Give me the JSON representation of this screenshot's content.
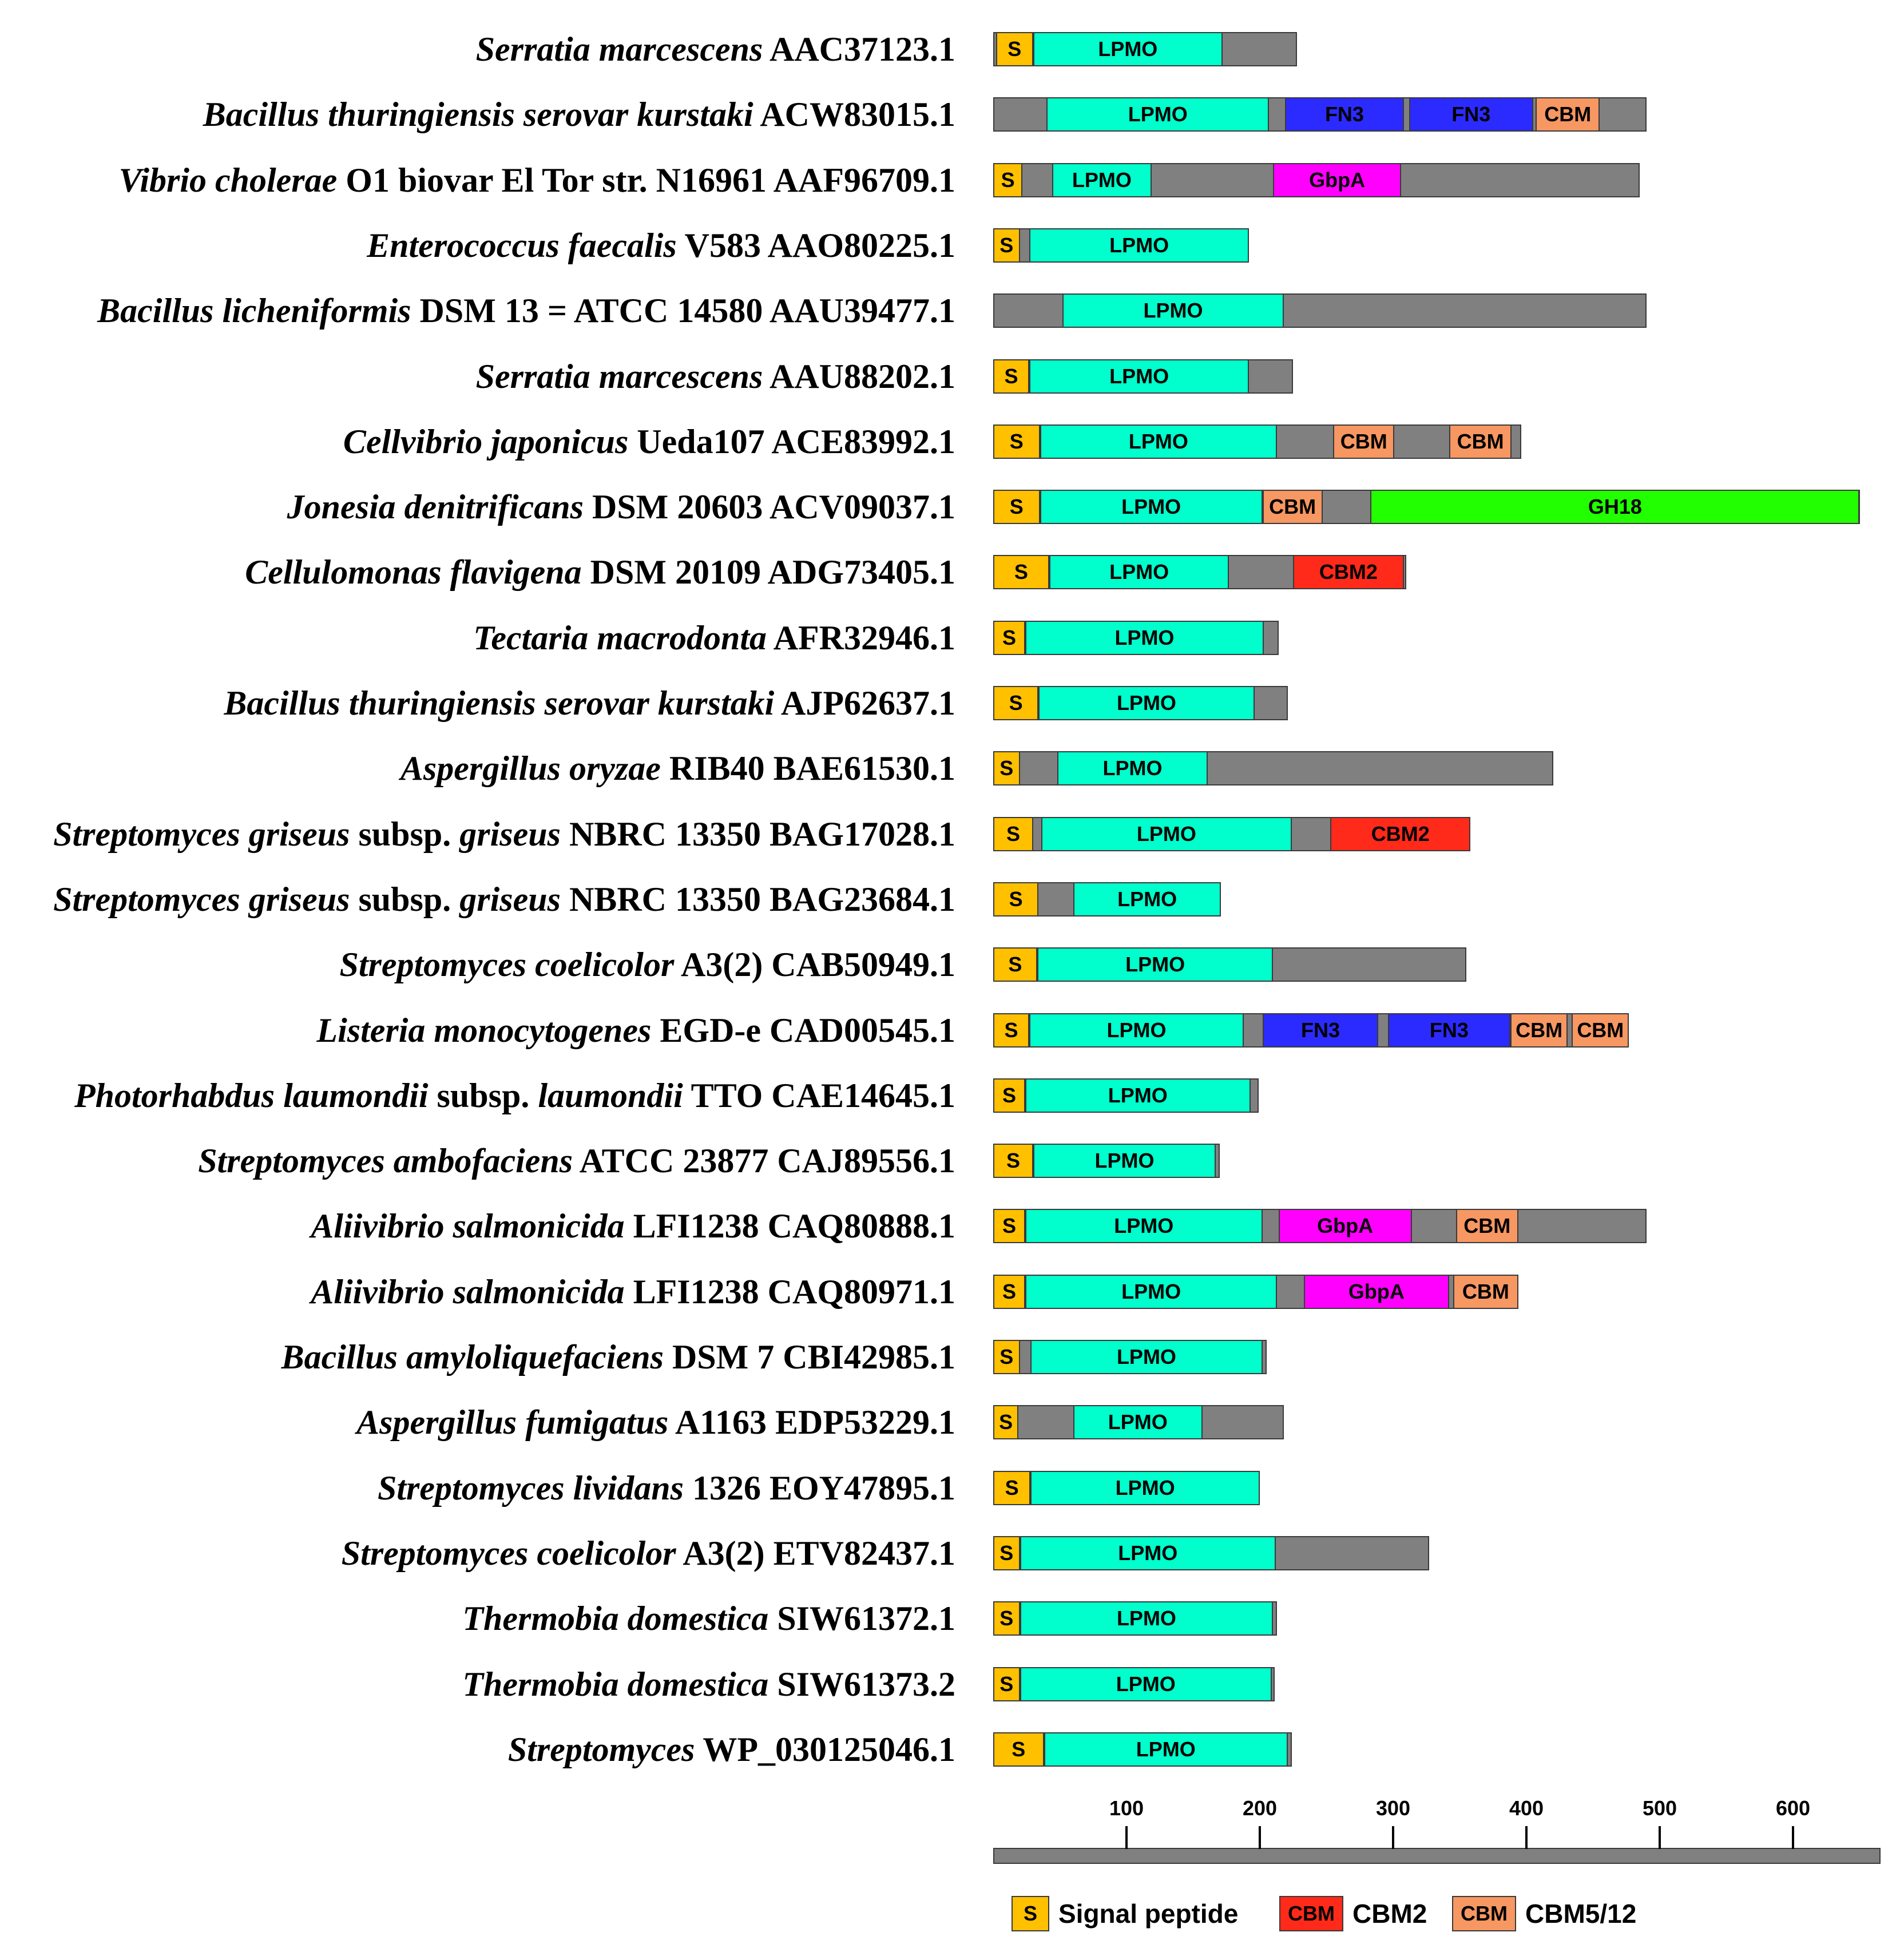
{
  "colors": {
    "S": "#FFC000",
    "LPMO": "#00FFCC",
    "FN3": "#2B2BFF",
    "CBM": "#F79762",
    "CBM2": "#FF2A1A",
    "GbpA": "#FF00FF",
    "GH18": "#22FF00",
    "backbone": "#808080"
  },
  "chart_data": {
    "type": "domain-architecture",
    "x_axis": {
      "min": 0,
      "max": 660,
      "ticks": [
        100,
        200,
        300,
        400,
        500,
        600
      ]
    },
    "proteins": [
      {
        "species": "Serratia marcescens",
        "rest": " AAC37123.1",
        "length": 228,
        "domains": [
          {
            "type": "S",
            "label": "S",
            "start": 2,
            "end": 30
          },
          {
            "type": "LPMO",
            "label": "LPMO",
            "start": 30,
            "end": 172
          }
        ]
      },
      {
        "species": "Bacillus thuringiensis serovar kurstaki",
        "rest": " ACW83015.1",
        "length": 490,
        "domains": [
          {
            "type": "LPMO",
            "label": "LPMO",
            "start": 40,
            "end": 207
          },
          {
            "type": "FN3",
            "label": "FN3",
            "start": 219,
            "end": 308
          },
          {
            "type": "FN3",
            "label": "FN3",
            "start": 312,
            "end": 405
          },
          {
            "type": "CBM",
            "label": "CBM",
            "start": 407,
            "end": 455
          }
        ]
      },
      {
        "species": "Vibrio cholerae",
        "rest": " O1 biovar El Tor str. N16961 AAF96709.1",
        "length": 485,
        "domains": [
          {
            "type": "S",
            "label": "S",
            "start": 0,
            "end": 22
          },
          {
            "type": "LPMO",
            "label": "LPMO",
            "start": 44,
            "end": 119
          },
          {
            "type": "GbpA",
            "label": "GbpA",
            "start": 210,
            "end": 306
          }
        ]
      },
      {
        "species": "Enterococcus faecalis",
        "rest": " V583 AAO80225.1",
        "length": 192,
        "domains": [
          {
            "type": "S",
            "label": "S",
            "start": 0,
            "end": 20
          },
          {
            "type": "LPMO",
            "label": "LPMO",
            "start": 27,
            "end": 192
          }
        ]
      },
      {
        "species": "Bacillus licheniformis",
        "rest": " DSM 13 = ATCC 14580 AAU39477.1",
        "length": 490,
        "domains": [
          {
            "type": "LPMO",
            "label": "LPMO",
            "start": 52,
            "end": 218
          }
        ]
      },
      {
        "species": "Serratia marcescens",
        "rest": " AAU88202.1",
        "length": 225,
        "domains": [
          {
            "type": "S",
            "label": "S",
            "start": 0,
            "end": 27
          },
          {
            "type": "LPMO",
            "label": "LPMO",
            "start": 27,
            "end": 192
          }
        ]
      },
      {
        "species": "Cellvibrio japonicus",
        "rest": " Ueda107 ACE83992.1",
        "length": 396,
        "domains": [
          {
            "type": "S",
            "label": "S",
            "start": 0,
            "end": 35
          },
          {
            "type": "LPMO",
            "label": "LPMO",
            "start": 35,
            "end": 213
          },
          {
            "type": "CBM",
            "label": "CBM",
            "start": 255,
            "end": 301
          },
          {
            "type": "CBM",
            "label": "CBM",
            "start": 342,
            "end": 389
          }
        ]
      },
      {
        "species": "Jonesia denitrificans",
        "rest": " DSM 20603 ACV09037.1",
        "length": 650,
        "domains": [
          {
            "type": "S",
            "label": "S",
            "start": 0,
            "end": 35
          },
          {
            "type": "LPMO",
            "label": "LPMO",
            "start": 35,
            "end": 202
          },
          {
            "type": "CBM",
            "label": "CBM",
            "start": 202,
            "end": 247
          },
          {
            "type": "GH18",
            "label": "GH18",
            "start": 283,
            "end": 650
          }
        ]
      },
      {
        "species": "Cellulomonas flavigena",
        "rest": " DSM 20109 ADG73405.1",
        "length": 310,
        "domains": [
          {
            "type": "S",
            "label": "S",
            "start": 0,
            "end": 42
          },
          {
            "type": "LPMO",
            "label": "LPMO",
            "start": 42,
            "end": 177
          },
          {
            "type": "CBM2",
            "label": "CBM2",
            "start": 225,
            "end": 308
          }
        ]
      },
      {
        "species": "Tectaria macrodonta",
        "rest": " AFR32946.1",
        "length": 214,
        "domains": [
          {
            "type": "S",
            "label": "S",
            "start": 0,
            "end": 24
          },
          {
            "type": "LPMO",
            "label": "LPMO",
            "start": 24,
            "end": 203
          }
        ]
      },
      {
        "species": "Bacillus thuringiensis serovar kurstaki",
        "rest": " AJP62637.1",
        "length": 221,
        "domains": [
          {
            "type": "S",
            "label": "S",
            "start": 0,
            "end": 34
          },
          {
            "type": "LPMO",
            "label": "LPMO",
            "start": 34,
            "end": 196
          }
        ]
      },
      {
        "species": "Aspergillus oryzae",
        "rest": " RIB40 BAE61530.1",
        "length": 420,
        "domains": [
          {
            "type": "S",
            "label": "S",
            "start": 0,
            "end": 20
          },
          {
            "type": "LPMO",
            "label": "LPMO",
            "start": 48,
            "end": 161
          }
        ]
      },
      {
        "species": "Streptomyces griseus",
        "rest": " subsp. ",
        "species2": "griseus",
        "rest2": " NBRC 13350 BAG17028.1",
        "length": 358,
        "domains": [
          {
            "type": "S",
            "label": "S",
            "start": 0,
            "end": 30
          },
          {
            "type": "LPMO",
            "label": "LPMO",
            "start": 36,
            "end": 224
          },
          {
            "type": "CBM2",
            "label": "CBM2",
            "start": 253,
            "end": 358
          }
        ]
      },
      {
        "species": "Streptomyces griseus",
        "rest": " subsp. ",
        "species2": "griseus",
        "rest2": " NBRC 13350 BAG23684.1",
        "length": 171,
        "domains": [
          {
            "type": "S",
            "label": "S",
            "start": 0,
            "end": 34
          },
          {
            "type": "LPMO",
            "label": "LPMO",
            "start": 60,
            "end": 171
          }
        ]
      },
      {
        "species": "Streptomyces coelicolor",
        "rest": " A3(2) CAB50949.1",
        "length": 355,
        "domains": [
          {
            "type": "S",
            "label": "S",
            "start": 0,
            "end": 33
          },
          {
            "type": "LPMO",
            "label": "LPMO",
            "start": 33,
            "end": 210
          }
        ]
      },
      {
        "species": "Listeria monocytogenes",
        "rest": " EGD-e CAD00545.1",
        "length": 477,
        "domains": [
          {
            "type": "S",
            "label": "S",
            "start": 0,
            "end": 27
          },
          {
            "type": "LPMO",
            "label": "LPMO",
            "start": 27,
            "end": 188
          },
          {
            "type": "FN3",
            "label": "FN3",
            "start": 202,
            "end": 289
          },
          {
            "type": "FN3",
            "label": "FN3",
            "start": 296,
            "end": 388
          },
          {
            "type": "CBM",
            "label": "CBM",
            "start": 388,
            "end": 431
          },
          {
            "type": "CBM",
            "label": "CBM",
            "start": 434,
            "end": 477
          }
        ]
      },
      {
        "species": "Photorhabdus laumondii",
        "rest": " subsp. ",
        "species2": "laumondii",
        "rest2": " TTO CAE14645.1",
        "length": 199,
        "domains": [
          {
            "type": "S",
            "label": "S",
            "start": 0,
            "end": 24
          },
          {
            "type": "LPMO",
            "label": "LPMO",
            "start": 24,
            "end": 193
          }
        ]
      },
      {
        "species": "Streptomyces ambofaciens",
        "rest": " ATCC 23877 CAJ89556.1",
        "length": 170,
        "domains": [
          {
            "type": "S",
            "label": "S",
            "start": 0,
            "end": 30
          },
          {
            "type": "LPMO",
            "label": "LPMO",
            "start": 30,
            "end": 167
          }
        ]
      },
      {
        "species": "Aliivibrio salmonicida",
        "rest": " LFI1238 CAQ80888.1",
        "length": 490,
        "domains": [
          {
            "type": "S",
            "label": "S",
            "start": 0,
            "end": 24
          },
          {
            "type": "LPMO",
            "label": "LPMO",
            "start": 24,
            "end": 202
          },
          {
            "type": "GbpA",
            "label": "GbpA",
            "start": 214,
            "end": 314
          },
          {
            "type": "CBM",
            "label": "CBM",
            "start": 347,
            "end": 394
          }
        ]
      },
      {
        "species": "Aliivibrio salmonicida",
        "rest": " LFI1238 CAQ80971.1",
        "length": 394,
        "domains": [
          {
            "type": "S",
            "label": "S",
            "start": 0,
            "end": 24
          },
          {
            "type": "LPMO",
            "label": "LPMO",
            "start": 24,
            "end": 213
          },
          {
            "type": "GbpA",
            "label": "GbpA",
            "start": 233,
            "end": 342
          },
          {
            "type": "CBM",
            "label": "CBM",
            "start": 345,
            "end": 394
          }
        ]
      },
      {
        "species": "Bacillus amyloliquefaciens",
        "rest": " DSM 7 CBI42985.1",
        "length": 205,
        "domains": [
          {
            "type": "S",
            "label": "S",
            "start": 0,
            "end": 20
          },
          {
            "type": "LPMO",
            "label": "LPMO",
            "start": 28,
            "end": 202
          }
        ]
      },
      {
        "species": "Aspergillus fumigatus",
        "rest": " A1163 EDP53229.1",
        "length": 218,
        "domains": [
          {
            "type": "S",
            "label": "S",
            "start": 0,
            "end": 19
          },
          {
            "type": "LPMO",
            "label": "LPMO",
            "start": 60,
            "end": 157
          }
        ]
      },
      {
        "species": "Streptomyces lividans",
        "rest": " 1326 EOY47895.1",
        "length": 200,
        "domains": [
          {
            "type": "S",
            "label": "S",
            "start": 0,
            "end": 28
          },
          {
            "type": "LPMO",
            "label": "LPMO",
            "start": 28,
            "end": 200
          }
        ]
      },
      {
        "species": "Streptomyces coelicolor",
        "rest": " A3(2) ETV82437.1",
        "length": 327,
        "domains": [
          {
            "type": "S",
            "label": "S",
            "start": 0,
            "end": 20
          },
          {
            "type": "LPMO",
            "label": "LPMO",
            "start": 20,
            "end": 212
          }
        ]
      },
      {
        "species": "Thermobia domestica",
        "rest": " SIW61372.1",
        "length": 213,
        "domains": [
          {
            "type": "S",
            "label": "S",
            "start": 0,
            "end": 20
          },
          {
            "type": "LPMO",
            "label": "LPMO",
            "start": 20,
            "end": 210
          }
        ]
      },
      {
        "species": "Thermobia domestica",
        "rest": " SIW61373.2",
        "length": 211,
        "domains": [
          {
            "type": "S",
            "label": "S",
            "start": 0,
            "end": 20
          },
          {
            "type": "LPMO",
            "label": "LPMO",
            "start": 20,
            "end": 209
          }
        ]
      },
      {
        "species": "Streptomyces",
        "rest": " WP_030125046.1",
        "length": 224,
        "domains": [
          {
            "type": "S",
            "label": "S",
            "start": 0,
            "end": 38
          },
          {
            "type": "LPMO",
            "label": "LPMO",
            "start": 38,
            "end": 221
          }
        ]
      }
    ]
  },
  "legend": [
    {
      "type": "S",
      "box": "S",
      "text": "Signal peptide"
    },
    {
      "type": "CBM2",
      "box": "CBM",
      "text": "CBM2"
    },
    {
      "type": "CBM",
      "box": "CBM",
      "text": "CBM5/12"
    }
  ]
}
